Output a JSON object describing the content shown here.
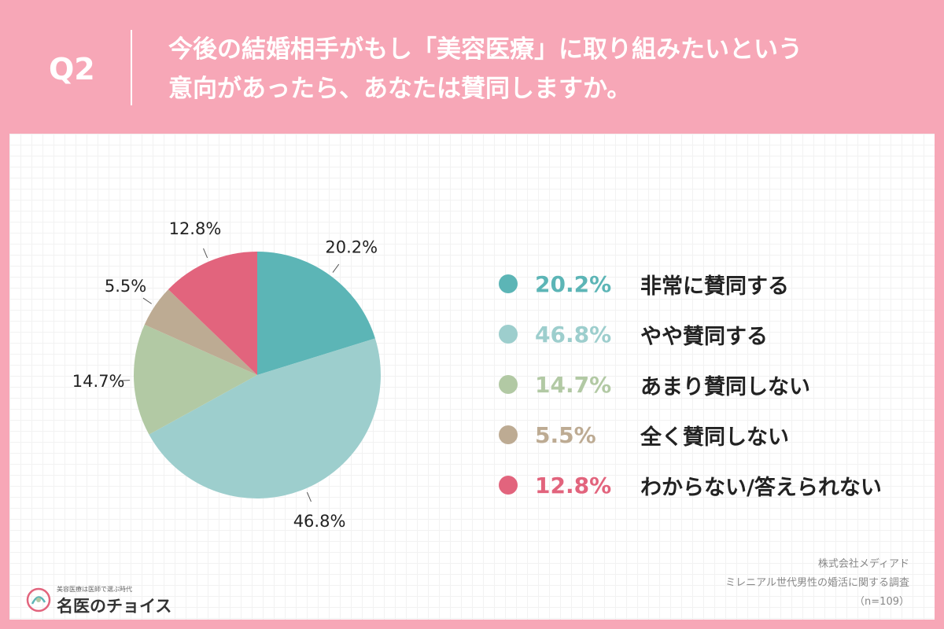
{
  "header": {
    "q_number": "Q2",
    "question_line1": "今後の結婚相手がもし「美容医療」に取り組みたいという",
    "question_line2": "意向があったら、あなたは賛同しますか。"
  },
  "chart_data": {
    "type": "pie",
    "title": "",
    "start_angle": "12 o'clock, clockwise",
    "series": [
      {
        "name": "非常に賛同する",
        "value": 20.2,
        "label": "20.2%",
        "color": "#5cb5b6"
      },
      {
        "name": "やや賛同する",
        "value": 46.8,
        "label": "46.8%",
        "color": "#9dcecd"
      },
      {
        "name": "あまり賛同しない",
        "value": 14.7,
        "label": "14.7%",
        "color": "#b2c9a4"
      },
      {
        "name": "全く賛同しない",
        "value": 5.5,
        "label": "5.5%",
        "color": "#bdab93"
      },
      {
        "name": "わからない/答えられない",
        "value": 12.8,
        "label": "12.8%",
        "color": "#e2647d"
      }
    ],
    "legend_position": "right"
  },
  "source": {
    "company": "株式会社メディアド",
    "survey": "ミレニアル世代男性の婚活に関する調査",
    "sample": "（n=109）"
  },
  "logo": {
    "tagline": "美容医療は医師で選ぶ時代",
    "name": "名医のチョイス"
  },
  "colors": {
    "background": "#f7a7b7",
    "panel": "#ffffff"
  }
}
